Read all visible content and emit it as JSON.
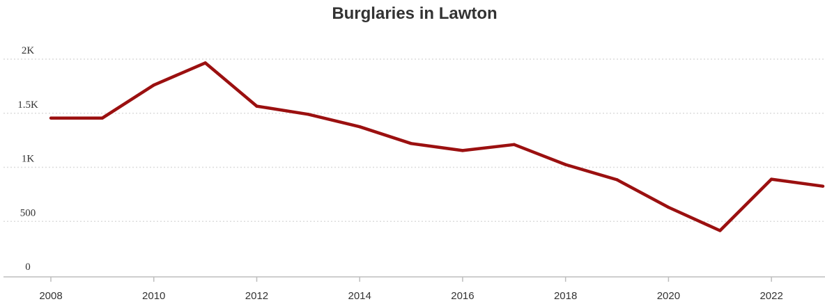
{
  "chart_data": {
    "type": "line",
    "title": "Burglaries in Lawton",
    "xlabel": "",
    "ylabel": "",
    "x": [
      2008,
      2009,
      2010,
      2011,
      2012,
      2013,
      2014,
      2015,
      2016,
      2017,
      2018,
      2019,
      2020,
      2021,
      2022,
      2023
    ],
    "series": [
      {
        "values": [
          1455,
          1455,
          1760,
          1965,
          1565,
          1490,
          1375,
          1220,
          1155,
          1210,
          1025,
          885,
          630,
          415,
          890,
          825
        ]
      }
    ],
    "xlim": [
      2008,
      2023
    ],
    "ylim": [
      0,
      2000
    ],
    "x_ticks": [
      2008,
      2010,
      2012,
      2014,
      2016,
      2018,
      2020,
      2022
    ],
    "x_tick_labels": [
      "2008",
      "2010",
      "2012",
      "2014",
      "2016",
      "2018",
      "2020",
      "2022"
    ],
    "y_ticks": [
      0,
      500,
      1000,
      1500,
      2000
    ],
    "y_tick_labels": [
      "0",
      "500",
      "1K",
      "1.5K",
      "2K"
    ],
    "grid": "horizontal dotted",
    "line_color": "#9b1010",
    "grid_color": "#dcdcdc",
    "axis_color": "#bdbdbd"
  }
}
